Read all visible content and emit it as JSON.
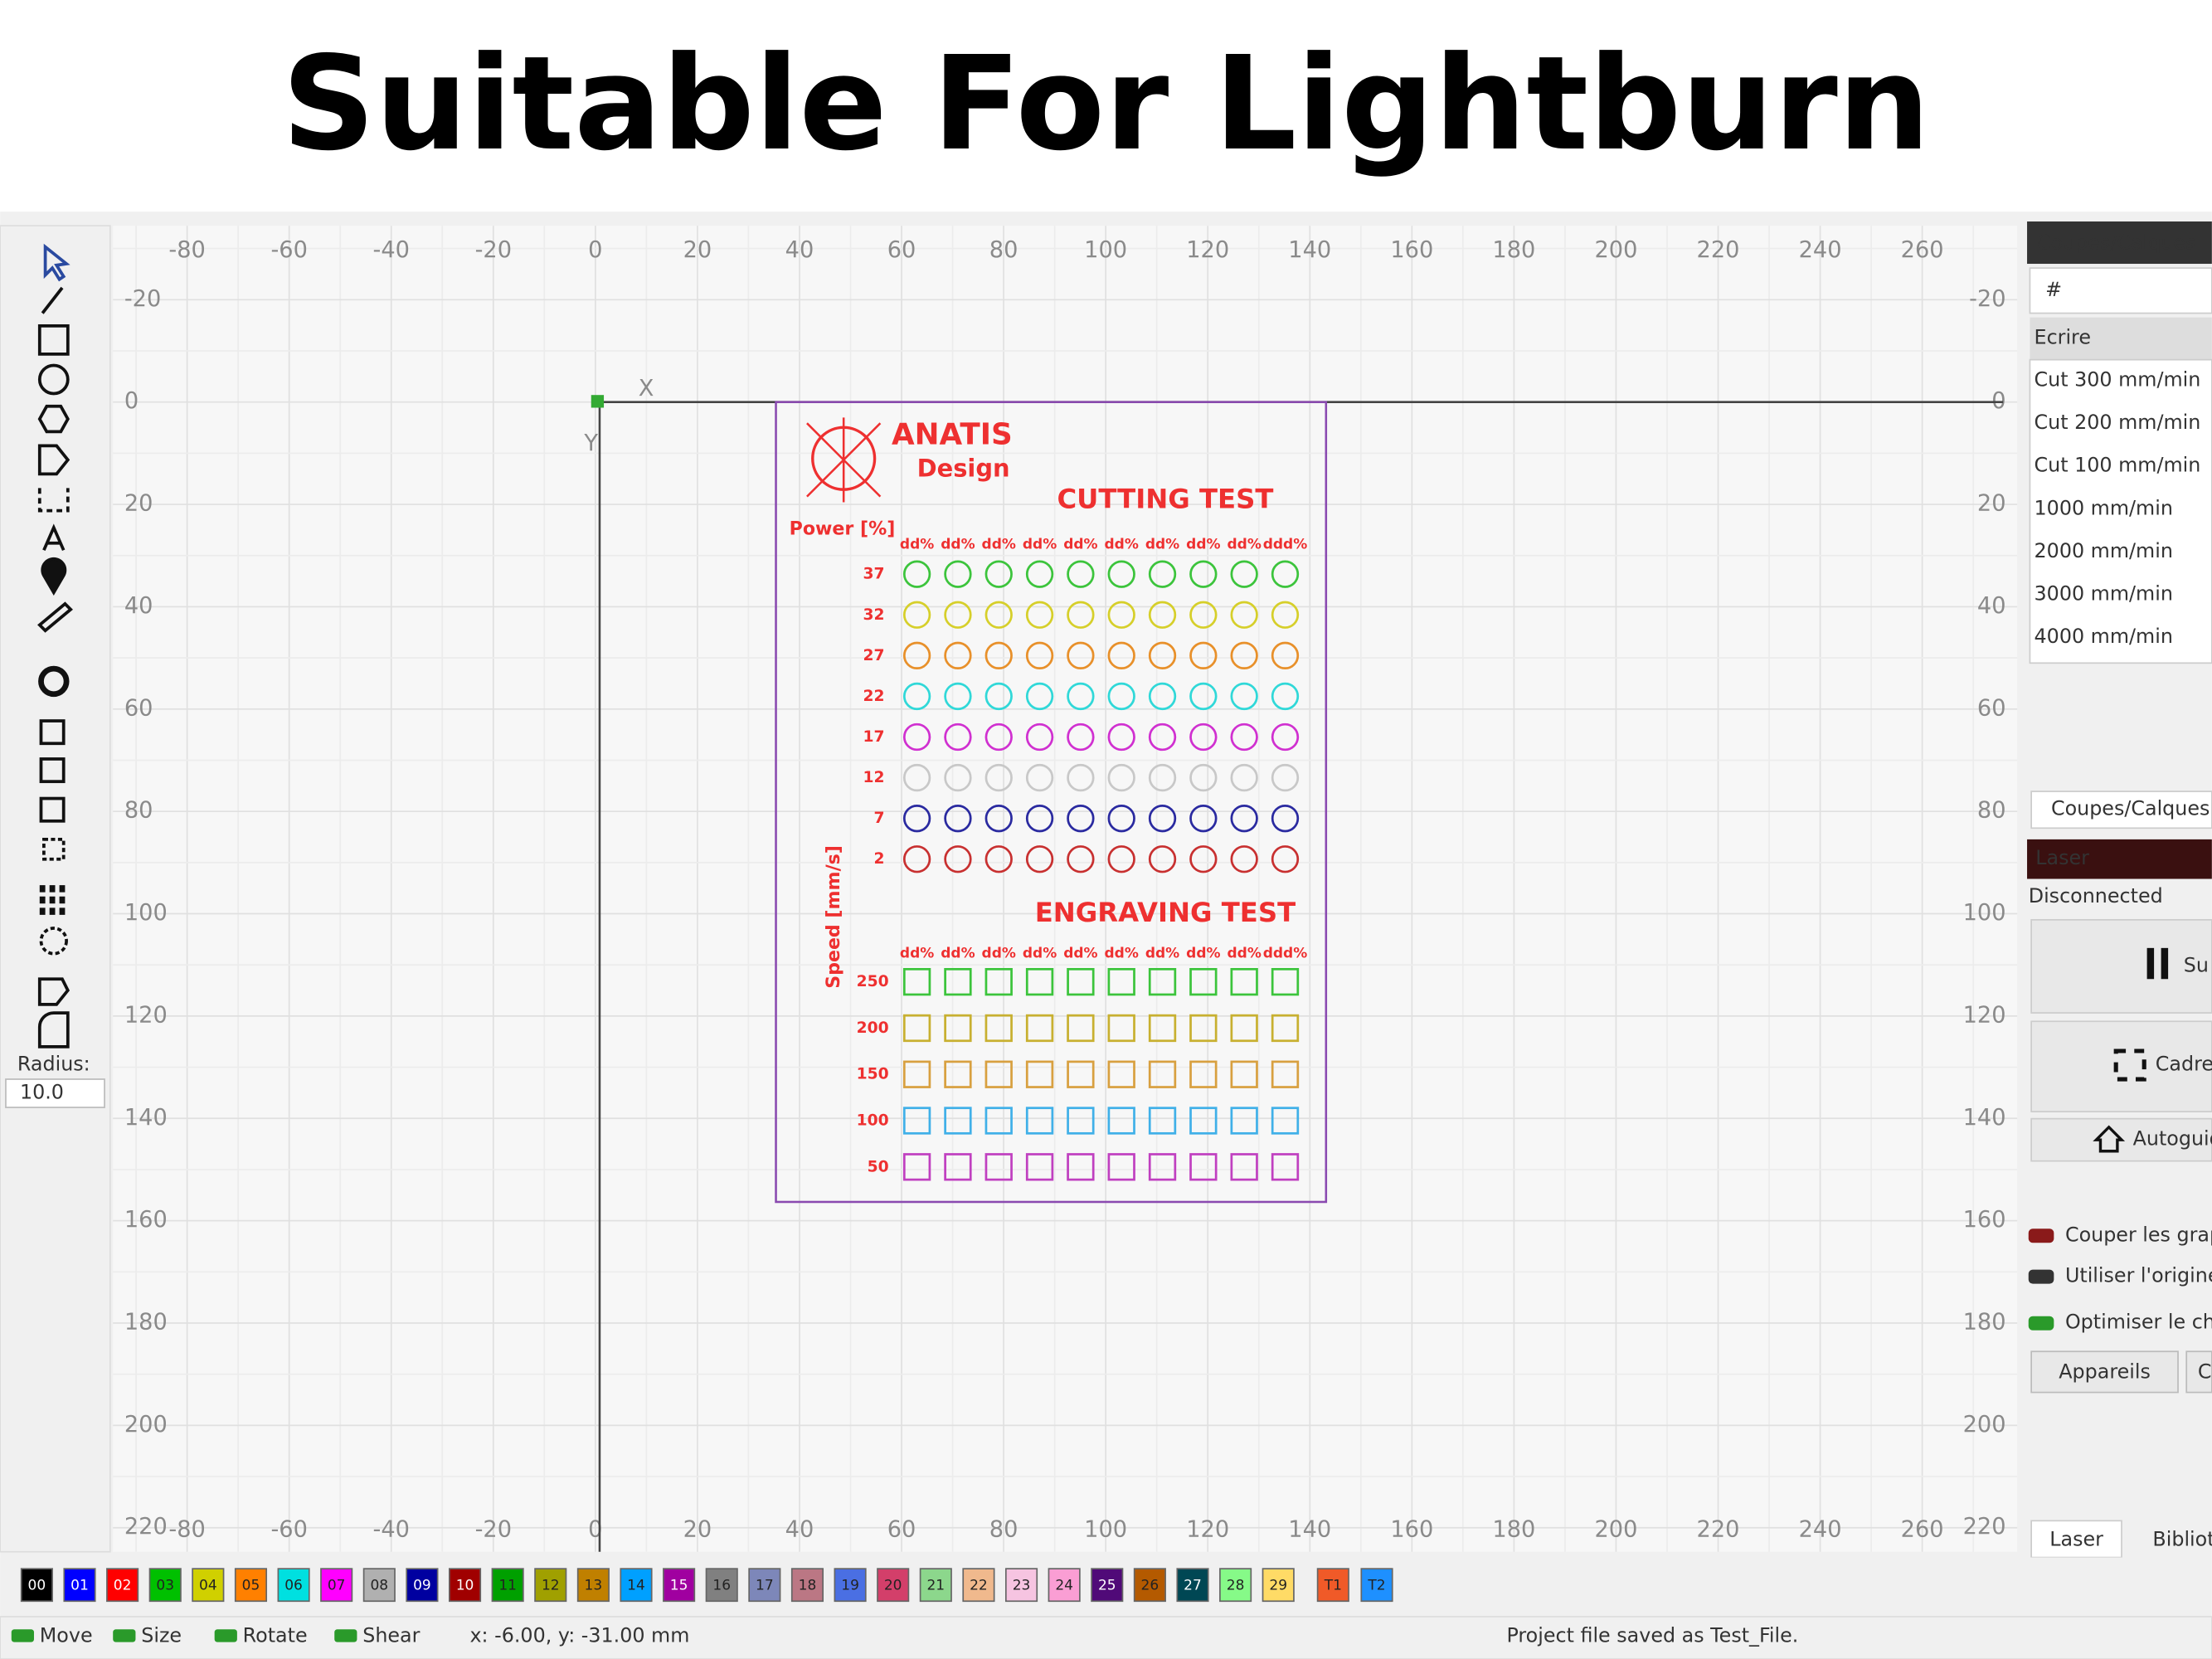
{
  "title": "Suitable For Lightburn",
  "ruler": {
    "x_labels": [
      -80,
      -60,
      -40,
      -20,
      0,
      20,
      40,
      60,
      80,
      100,
      120,
      140,
      160,
      180,
      200,
      220,
      240,
      260
    ],
    "y_labels": [
      -20,
      0,
      20,
      40,
      60,
      80,
      100,
      120,
      140,
      160,
      180,
      200,
      220
    ]
  },
  "canvas": {
    "axis_x": "X",
    "axis_y": "Y",
    "logo": "ANATIS",
    "logo_sub": "Design",
    "cutting_title": "CUTTING TEST",
    "power_label": "Power [%]",
    "power_rows": [
      {
        "label": 37,
        "color": "#3cc43c"
      },
      {
        "label": 32,
        "color": "#d6cf2a"
      },
      {
        "label": 27,
        "color": "#e8902a"
      },
      {
        "label": 22,
        "color": "#30d8d8"
      },
      {
        "label": 17,
        "color": "#d030d0"
      },
      {
        "label": 12,
        "color": "#c8c8c8"
      },
      {
        "label": 7,
        "color": "#2a2aa0"
      },
      {
        "label": 2,
        "color": "#c83030"
      }
    ],
    "column_labels": [
      "dd%",
      "dd%",
      "dd%",
      "dd%",
      "dd%",
      "dd%",
      "dd%",
      "dd%",
      "dd%",
      "ddd%"
    ],
    "engraving_title": "ENGRAVING TEST",
    "speed_label": "Speed [mm/s]",
    "speed_rows": [
      {
        "label": 250,
        "color": "#3cc43c"
      },
      {
        "label": 200,
        "color": "#c8b030"
      },
      {
        "label": 150,
        "color": "#d8a040"
      },
      {
        "label": 100,
        "color": "#40b0e8"
      },
      {
        "label": 50,
        "color": "#c040c0"
      }
    ]
  },
  "toolbar": {
    "radius_label": "Radius:",
    "radius_value": "10.0"
  },
  "layers_panel": {
    "title": "Coupes/Calques",
    "hash": "#",
    "header": "Ecrire",
    "rows": [
      "Cut 300 mm/min",
      "Cut 200 mm/min",
      "Cut 100 mm/min",
      "1000 mm/min",
      "2000 mm/min",
      "3000 mm/min",
      "4000 mm/min"
    ],
    "tab": "Coupes/Calques"
  },
  "laser_panel": {
    "title": "Laser",
    "status": "Disconnected",
    "buttons": [
      "Su",
      "Cadre",
      "Autoguid"
    ],
    "options": [
      "Couper les grap",
      "Utiliser l'origine",
      "Optimiser le ch"
    ],
    "footer_buttons": [
      "Appareils",
      "C"
    ],
    "tabs": [
      "Laser",
      "Biblioth"
    ]
  },
  "palette": [
    {
      "label": "00",
      "color": "#000000"
    },
    {
      "label": "01",
      "color": "#0000ff"
    },
    {
      "label": "02",
      "color": "#ff0000"
    },
    {
      "label": "03",
      "color": "#00c000"
    },
    {
      "label": "04",
      "color": "#d0d000"
    },
    {
      "label": "05",
      "color": "#ff8000"
    },
    {
      "label": "06",
      "color": "#00e0e0"
    },
    {
      "label": "07",
      "color": "#ff00ff"
    },
    {
      "label": "08",
      "color": "#b0b0b0"
    },
    {
      "label": "09",
      "color": "#0000a0"
    },
    {
      "label": "10",
      "color": "#a00000"
    },
    {
      "label": "11",
      "color": "#00a000"
    },
    {
      "label": "12",
      "color": "#a0a000"
    },
    {
      "label": "13",
      "color": "#c08000"
    },
    {
      "label": "14",
      "color": "#00a0ff"
    },
    {
      "label": "15",
      "color": "#a000a0"
    },
    {
      "label": "16",
      "color": "#808080"
    },
    {
      "label": "17",
      "color": "#7d87b9"
    },
    {
      "label": "18",
      "color": "#bb7784"
    },
    {
      "label": "19",
      "color": "#4a6fe3"
    },
    {
      "label": "20",
      "color": "#d33f6a"
    },
    {
      "label": "21",
      "color": "#8cd78c"
    },
    {
      "label": "22",
      "color": "#f0b98d"
    },
    {
      "label": "23",
      "color": "#f6c4e1"
    },
    {
      "label": "24",
      "color": "#fa9ed4"
    },
    {
      "label": "25",
      "color": "#500a78"
    },
    {
      "label": "26",
      "color": "#b45a00"
    },
    {
      "label": "27",
      "color": "#004754"
    },
    {
      "label": "28",
      "color": "#86fa88"
    },
    {
      "label": "29",
      "color": "#ffdb66"
    },
    {
      "label": "T1",
      "color": "#f05a28"
    },
    {
      "label": "T2",
      "color": "#1e90ff"
    }
  ],
  "status_bar": {
    "toggles": [
      "Move",
      "Size",
      "Rotate",
      "Shear"
    ],
    "coords": "x: -6.00, y: -31.00 mm",
    "message": "Project file saved as Test_File."
  }
}
